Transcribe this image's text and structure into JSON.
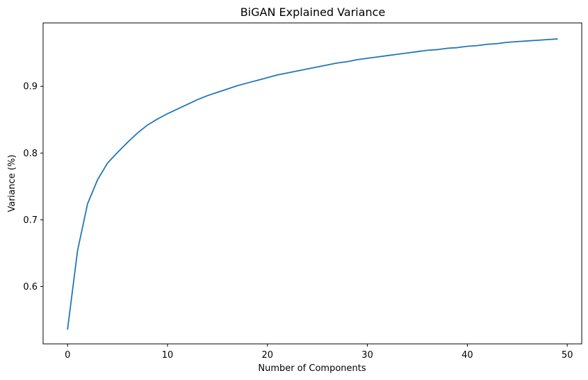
{
  "chart_data": {
    "type": "line",
    "title": "BiGAN Explained Variance",
    "xlabel": "Number of Components",
    "ylabel": "Variance (%)",
    "xlim": [
      -2.45,
      51.45
    ],
    "ylim": [
      0.514,
      0.995
    ],
    "xticks": [
      0,
      10,
      20,
      30,
      40,
      50
    ],
    "xtick_labels": [
      "0",
      "10",
      "20",
      "30",
      "40",
      "50"
    ],
    "yticks": [
      0.6,
      0.7,
      0.8,
      0.9
    ],
    "ytick_labels": [
      "0.6",
      "0.7",
      "0.8",
      "0.9"
    ],
    "grid": false,
    "line_color": "#1f77b4",
    "series": [
      {
        "x": [
          0,
          1,
          2,
          3,
          4,
          5,
          6,
          7,
          8,
          9,
          10,
          11,
          12,
          13,
          14,
          15,
          16,
          17,
          18,
          19,
          20,
          21,
          22,
          23,
          24,
          25,
          26,
          27,
          28,
          29,
          30,
          31,
          32,
          33,
          34,
          35,
          36,
          37,
          38,
          39,
          40,
          41,
          42,
          43,
          44,
          45,
          46,
          47,
          48,
          49
        ],
        "values": [
          0.536,
          0.654,
          0.724,
          0.76,
          0.785,
          0.801,
          0.816,
          0.83,
          0.842,
          0.851,
          0.859,
          0.866,
          0.873,
          0.88,
          0.886,
          0.891,
          0.896,
          0.901,
          0.905,
          0.909,
          0.913,
          0.917,
          0.92,
          0.923,
          0.926,
          0.929,
          0.932,
          0.935,
          0.937,
          0.94,
          0.942,
          0.944,
          0.946,
          0.948,
          0.95,
          0.952,
          0.954,
          0.955,
          0.957,
          0.958,
          0.96,
          0.961,
          0.963,
          0.964,
          0.966,
          0.967,
          0.968,
          0.969,
          0.97,
          0.971
        ]
      }
    ]
  }
}
